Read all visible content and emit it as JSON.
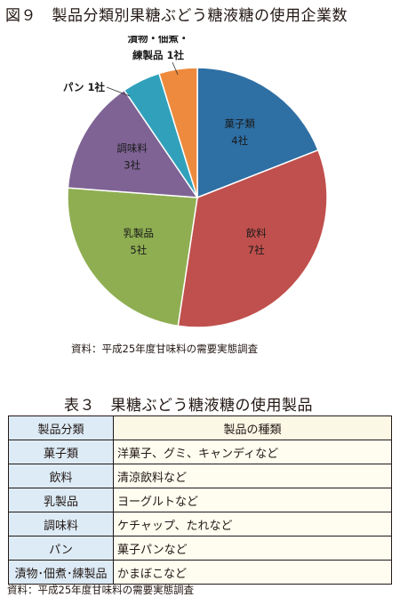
{
  "figure": {
    "title": "図９　製品分類別果糖ぶどう糖液糖の使用企業数",
    "source": "資料：平成25年度甘味料の需要実態調査"
  },
  "chart_data": {
    "type": "pie",
    "unit": "社",
    "slices": [
      {
        "name": "菓子類",
        "value": 4,
        "label_lines": [
          "菓子類",
          "4社"
        ],
        "color": "#2e6fa4",
        "label_pos": "inside"
      },
      {
        "name": "飲料",
        "value": 7,
        "label_lines": [
          "飲料",
          "7社"
        ],
        "color": "#c0504d",
        "label_pos": "inside"
      },
      {
        "name": "乳製品",
        "value": 5,
        "label_lines": [
          "乳製品",
          "5社"
        ],
        "color": "#8fae52",
        "label_pos": "inside"
      },
      {
        "name": "調味料",
        "value": 3,
        "label_lines": [
          "調味料",
          "3社"
        ],
        "color": "#7e6394",
        "label_pos": "inside"
      },
      {
        "name": "パン",
        "value": 1,
        "label_lines": [
          "パン 1社"
        ],
        "color": "#31a1bb",
        "label_pos": "outside"
      },
      {
        "name": "漬物・佃煮・練製品",
        "value": 1,
        "label_lines": [
          "漬物・佃煮・",
          "練製品 1社"
        ],
        "color": "#ee8a3d",
        "label_pos": "outside"
      }
    ]
  },
  "table": {
    "title": "表３　果糖ぶどう糖液糖の使用製品",
    "headers": [
      "製品分類",
      "製品の種類"
    ],
    "rows": [
      [
        "菓子類",
        "洋菓子、グミ、キャンディなど"
      ],
      [
        "飲料",
        "清涼飲料など"
      ],
      [
        "乳製品",
        "ヨーグルトなど"
      ],
      [
        "調味料",
        "ケチャップ、たれなど"
      ],
      [
        "パン",
        "菓子パンなど"
      ],
      [
        "漬物･佃煮･練製品",
        "かまぼこなど"
      ]
    ],
    "source": "資料：平成25年度甘味料の需要実態調査"
  }
}
